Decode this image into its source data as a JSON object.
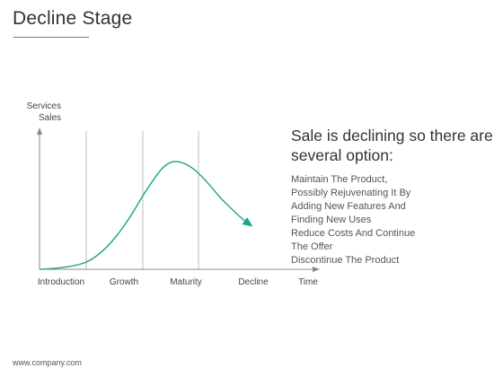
{
  "header": {
    "title": "Decline Stage"
  },
  "diagram": {
    "y_axis_label": [
      "Services",
      "Sales"
    ],
    "x_stages": [
      "Introduction",
      "Growth",
      "Maturity",
      "Decline",
      "Time"
    ],
    "curve_color": "#1aa58a",
    "axis_color": "#888888",
    "divider_color": "#bdbdbd"
  },
  "panel": {
    "headline": "Sale is declining so there are several option:",
    "options": [
      "Maintain The Product,",
      "Possibly Rejuvenating It By",
      "Adding New Features And",
      "Finding New Uses",
      "Reduce Costs And Continue",
      "The Offer",
      "Discontinue The Product"
    ]
  },
  "footer": {
    "text": "www.company.com"
  }
}
